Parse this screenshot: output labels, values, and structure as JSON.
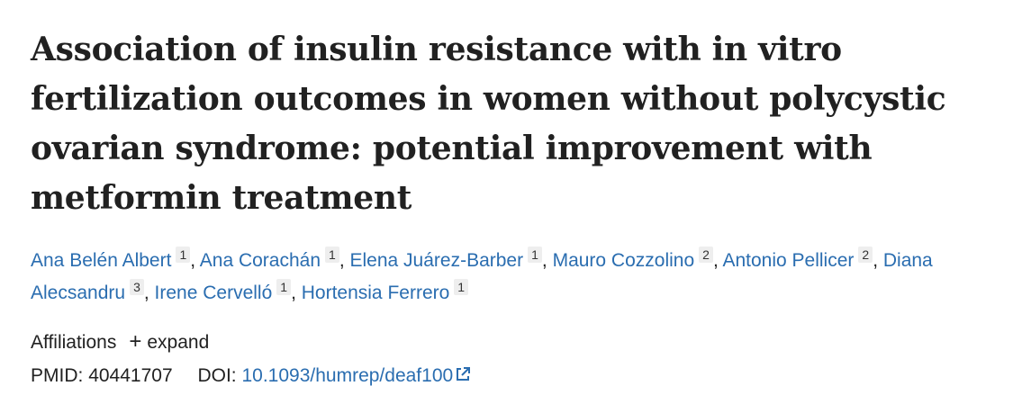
{
  "article": {
    "title": "Association of insulin resistance with in vitro fertilization outcomes in women without polycystic ovarian syndrome: potential improvement with metformin treatment",
    "authors": [
      {
        "name": "Ana Belén Albert",
        "aff": "1"
      },
      {
        "name": "Ana Corachán",
        "aff": "1"
      },
      {
        "name": "Elena Juárez-Barber",
        "aff": "1"
      },
      {
        "name": "Mauro Cozzolino",
        "aff": "2"
      },
      {
        "name": "Antonio Pellicer",
        "aff": "2"
      },
      {
        "name": "Diana Alecsandru",
        "aff": "3"
      },
      {
        "name": "Irene Cervelló",
        "aff": "1"
      },
      {
        "name": "Hortensia Ferrero",
        "aff": "1"
      }
    ],
    "affiliations_label": "Affiliations",
    "expand_label": "expand",
    "pmid_label": "PMID:",
    "pmid": "40441707",
    "doi_label": "DOI:",
    "doi": "10.1093/humrep/deaf100",
    "link_color": "#2a6db0"
  }
}
